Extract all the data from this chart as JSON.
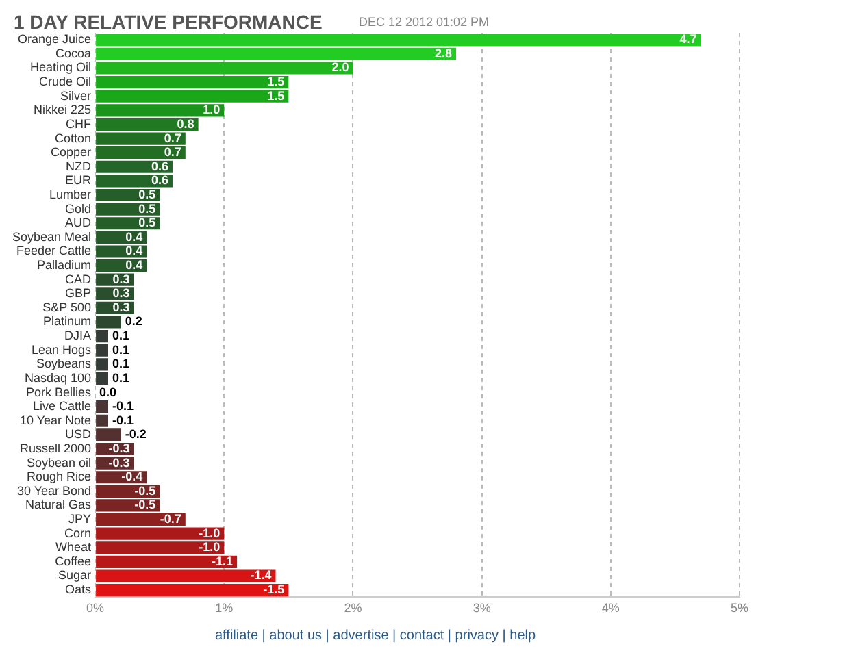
{
  "chart_data": {
    "type": "bar",
    "orientation": "horizontal",
    "title": "1 DAY RELATIVE PERFORMANCE",
    "subtitle": "DEC 12 2012 01:02 PM",
    "annotations": [
      "affiliate | about us | advertise | contact | privacy | help"
    ],
    "categories": [
      "Orange Juice",
      "Cocoa",
      "Heating Oil",
      "Crude Oil",
      "Silver",
      "Nikkei 225",
      "CHF",
      "Cotton",
      "Copper",
      "NZD",
      "EUR",
      "Lumber",
      "Gold",
      "AUD",
      "Soybean Meal",
      "Feeder Cattle",
      "Palladium",
      "CAD",
      "GBP",
      "S&P 500",
      "Platinum",
      "DJIA",
      "Lean Hogs",
      "Soybeans",
      "Nasdaq 100",
      "Pork Bellies",
      "Live Cattle",
      "10 Year Note",
      "USD",
      "Russell 2000",
      "Soybean oil",
      "Rough Rice",
      "30 Year Bond",
      "Natural Gas",
      "JPY",
      "Corn",
      "Wheat",
      "Coffee",
      "Sugar",
      "Oats"
    ],
    "values": [
      4.7,
      2.8,
      2.0,
      1.5,
      1.5,
      1.0,
      0.8,
      0.7,
      0.7,
      0.6,
      0.6,
      0.5,
      0.5,
      0.5,
      0.4,
      0.4,
      0.4,
      0.3,
      0.3,
      0.3,
      0.2,
      0.1,
      0.1,
      0.1,
      0.1,
      0.0,
      -0.1,
      -0.1,
      -0.2,
      -0.3,
      -0.3,
      -0.4,
      -0.5,
      -0.5,
      -0.7,
      -1.0,
      -1.0,
      -1.1,
      -1.4,
      -1.5
    ],
    "base": [
      0,
      0,
      0,
      0,
      0,
      0,
      0,
      0,
      0,
      0,
      0,
      0,
      0,
      0,
      0,
      0,
      0,
      0,
      0,
      0,
      0,
      0,
      0,
      0,
      0,
      null,
      0.1,
      0.1,
      0.2,
      0.3,
      0.3,
      0.4,
      0.5,
      0.5,
      0.7,
      1.0,
      1.0,
      1.1,
      1.4,
      1.5
    ],
    "value_labels": [
      "4.7",
      "2.8",
      "2.0",
      "1.5",
      "1.5",
      "1.0",
      "0.8",
      "0.7",
      "0.7",
      "0.6",
      "0.6",
      "0.5",
      "0.5",
      "0.5",
      "0.4",
      "0.4",
      "0.4",
      "0.3",
      "0.3",
      "0.3",
      "0.2",
      "0.1",
      "0.1",
      "0.1",
      "0.1",
      "0.0",
      "-0.1",
      "-0.1",
      "-0.2",
      "-0.3",
      "-0.3",
      "-0.4",
      "-0.5",
      "-0.5",
      "-0.7",
      "-1.0",
      "-1.0",
      "-1.1",
      "-1.4",
      "-1.5"
    ],
    "colors": [
      "#22cc22",
      "#22cc22",
      "#1eb81e",
      "#1aa81a",
      "#1aa81a",
      "#1a941a",
      "#217a21",
      "#226e22",
      "#226e22",
      "#24662a",
      "#24662a",
      "#255e28",
      "#255e28",
      "#255e28",
      "#275a2a",
      "#275a2a",
      "#275a2a",
      "#2a4f2d",
      "#2a4f2d",
      "#2a4f2d",
      "#2d472f",
      "#343c35",
      "#343c35",
      "#343c35",
      "#343c35",
      "#3a3a3a",
      "#4a3434",
      "#4a3434",
      "#553030",
      "#632c2c",
      "#632c2c",
      "#6e2828",
      "#7a2424",
      "#7a2424",
      "#8e2020",
      "#aa1a1a",
      "#aa1a1a",
      "#b81818",
      "#d81414",
      "#e01212"
    ],
    "xlim": [
      0,
      5
    ],
    "xticks": [
      {
        "value": 0,
        "label": "0%"
      },
      {
        "value": 1,
        "label": "1%"
      },
      {
        "value": 2,
        "label": "2%"
      },
      {
        "value": 3,
        "label": "3%"
      },
      {
        "value": 4,
        "label": "4%"
      },
      {
        "value": 5,
        "label": "5%"
      }
    ],
    "grid": "x",
    "legend": false
  }
}
